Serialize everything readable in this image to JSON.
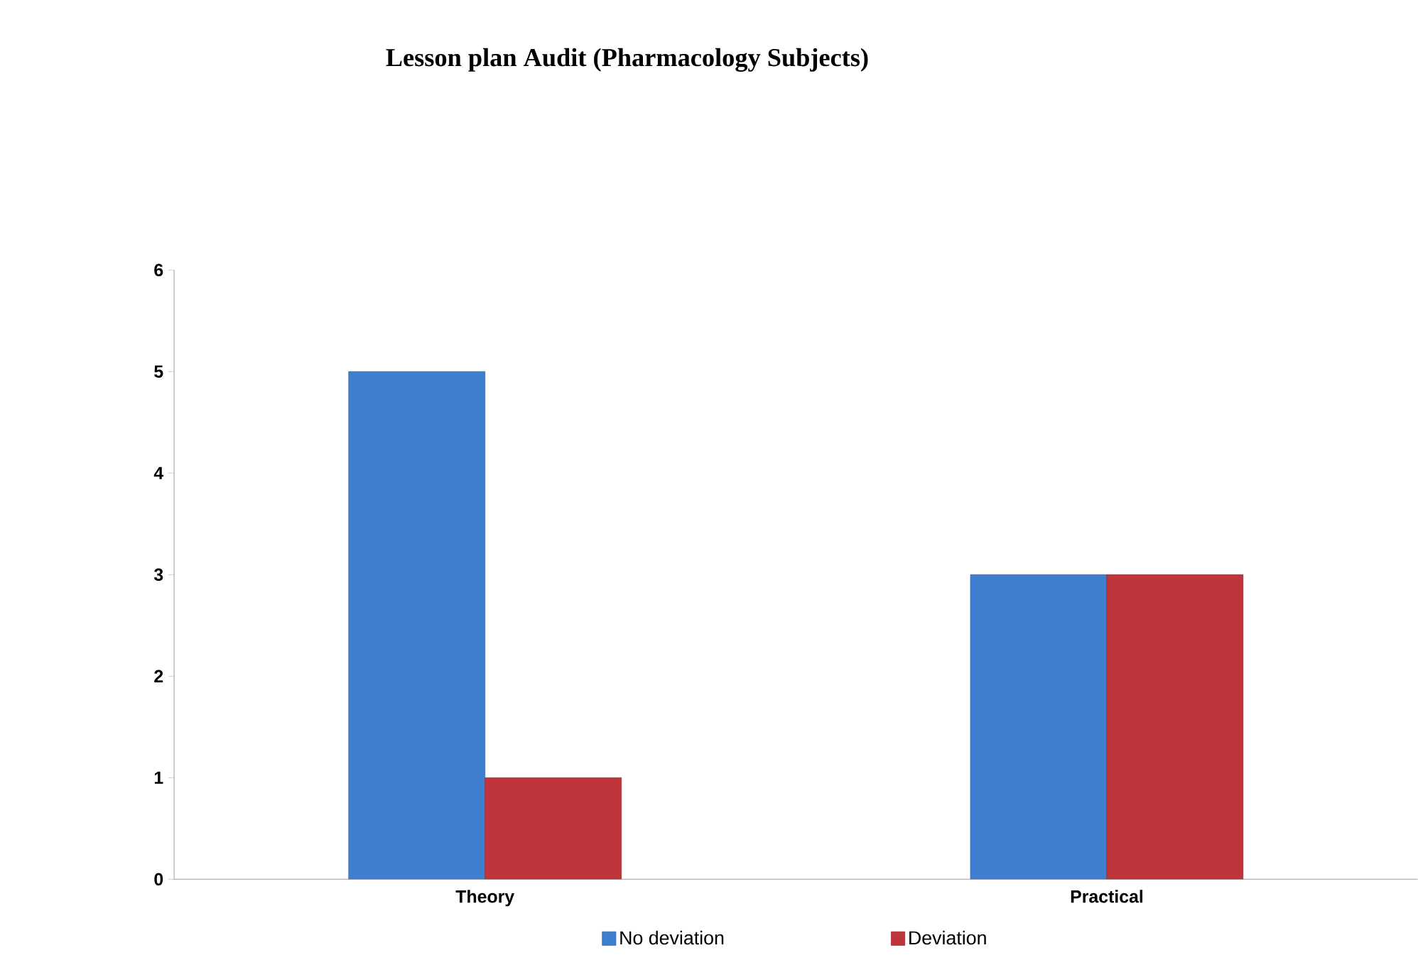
{
  "chart_data": {
    "type": "bar",
    "title": "Lesson plan Audit (Pharmacology Subjects)",
    "categories": [
      "Theory",
      "Practical"
    ],
    "series": [
      {
        "name": "No deviation",
        "color": "#3f7fd0",
        "values": [
          5,
          3
        ]
      },
      {
        "name": "Deviation",
        "color": "#c0343c",
        "values": [
          1,
          3
        ]
      }
    ],
    "ylim": [
      0,
      6
    ],
    "yticks": [
      0,
      1,
      2,
      3,
      4,
      5,
      6
    ],
    "grid": false,
    "legend": "bottom"
  }
}
